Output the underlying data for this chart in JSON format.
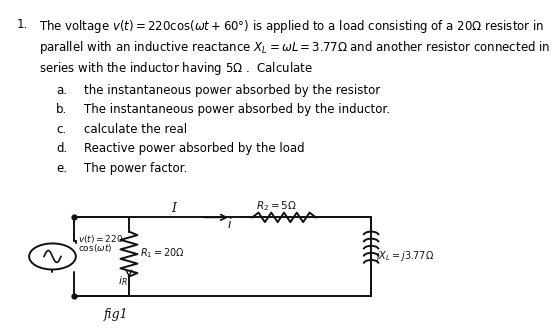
{
  "title_number": "1.",
  "line1": "The voltage $v(t) = 220\\cos(\\omega t + 60°)$ is applied to a load consisting of a 20Ω resistor in",
  "line2": "parallel with an inductive reactance $X_L = \\omega L = 3.77\\Omega$ and another resistor connected in",
  "line3": "series with the inductor having 5Ω .  Calculate",
  "items": [
    [
      "a.",
      "the instantaneous power absorbed by the resistor"
    ],
    [
      "b.",
      "The instantaneous power absorbed by the inductor."
    ],
    [
      "c.",
      "calculate the real"
    ],
    [
      "d.",
      "Reactive power absorbed by the load"
    ],
    [
      "e.",
      "The power factor."
    ]
  ],
  "bg_color": "#ffffff",
  "text_color": "#000000",
  "diagram_bg": "#c8b89a",
  "fig_label": "fig1"
}
